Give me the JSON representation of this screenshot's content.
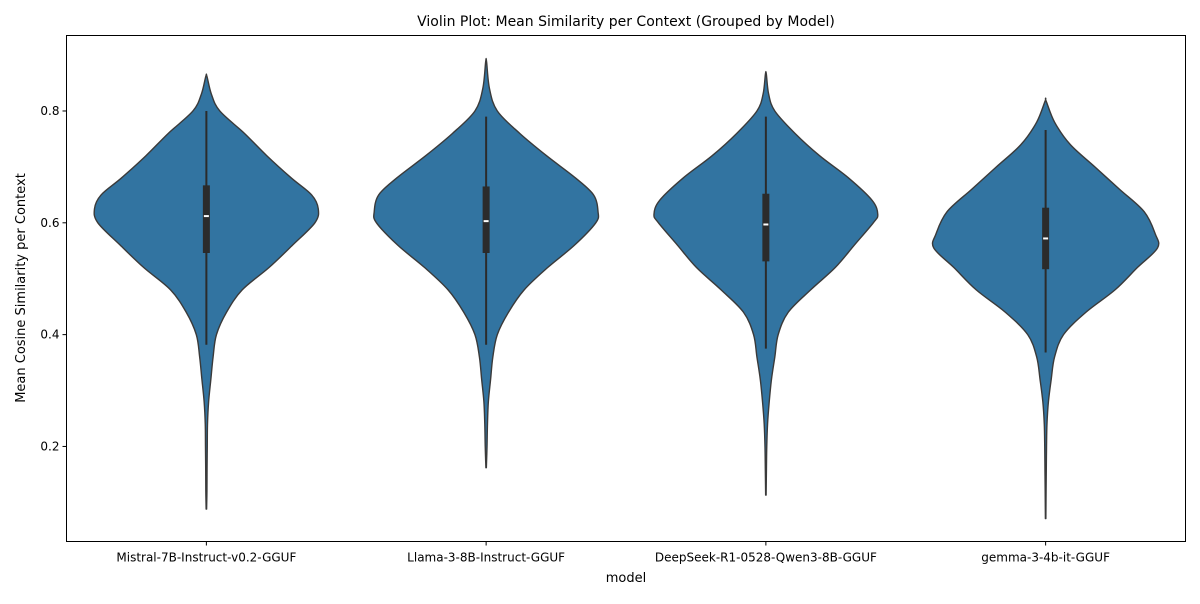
{
  "chart_data": {
    "type": "violin",
    "title": "Violin Plot: Mean Similarity per Context (Grouped by Model)",
    "xlabel": "model",
    "ylabel": "Mean Cosine Similarity per Context",
    "ylim": [
      0.03,
      0.935
    ],
    "yticks": [
      0.2,
      0.4,
      0.6,
      0.8
    ],
    "ytick_labels": [
      "0.2",
      "0.4",
      "0.6",
      "0.8"
    ],
    "grid": false,
    "colors": {
      "fill": "#3274a1",
      "edge": "#3a3a3a",
      "box": "#2b2b2b",
      "median": "#ffffff"
    },
    "categories": [
      "Mistral-7B-Instruct-v0.2-GGUF",
      "Llama-3-8B-Instruct-GGUF",
      "DeepSeek-R1-0528-Qwen3-8B-GGUF",
      "gemma-3-4b-it-GGUF"
    ],
    "violins": [
      {
        "category": "Mistral-7B-Instruct-v0.2-GGUF",
        "min": 0.088,
        "max": 0.862,
        "q1": 0.546,
        "median": 0.612,
        "q3": 0.667,
        "whisker_low": 0.382,
        "whisker_high": 0.8,
        "density": [
          [
            0.088,
            0.002
          ],
          [
            0.12,
            0.005
          ],
          [
            0.16,
            0.006
          ],
          [
            0.2,
            0.008
          ],
          [
            0.24,
            0.01
          ],
          [
            0.28,
            0.02
          ],
          [
            0.32,
            0.04
          ],
          [
            0.36,
            0.06
          ],
          [
            0.4,
            0.09
          ],
          [
            0.44,
            0.18
          ],
          [
            0.48,
            0.32
          ],
          [
            0.52,
            0.56
          ],
          [
            0.56,
            0.77
          ],
          [
            0.6,
            0.97
          ],
          [
            0.625,
            1.0
          ],
          [
            0.65,
            0.94
          ],
          [
            0.68,
            0.76
          ],
          [
            0.72,
            0.54
          ],
          [
            0.76,
            0.34
          ],
          [
            0.8,
            0.12
          ],
          [
            0.83,
            0.045
          ],
          [
            0.862,
            0.005
          ]
        ]
      },
      {
        "category": "Llama-3-8B-Instruct-GGUF",
        "min": 0.162,
        "max": 0.888,
        "q1": 0.546,
        "median": 0.603,
        "q3": 0.665,
        "whisker_low": 0.382,
        "whisker_high": 0.79,
        "density": [
          [
            0.162,
            0.002
          ],
          [
            0.2,
            0.008
          ],
          [
            0.24,
            0.012
          ],
          [
            0.28,
            0.02
          ],
          [
            0.32,
            0.04
          ],
          [
            0.36,
            0.06
          ],
          [
            0.4,
            0.1
          ],
          [
            0.44,
            0.2
          ],
          [
            0.48,
            0.34
          ],
          [
            0.52,
            0.55
          ],
          [
            0.56,
            0.79
          ],
          [
            0.6,
            0.98
          ],
          [
            0.62,
            1.0
          ],
          [
            0.65,
            0.96
          ],
          [
            0.68,
            0.8
          ],
          [
            0.72,
            0.54
          ],
          [
            0.76,
            0.3
          ],
          [
            0.8,
            0.1
          ],
          [
            0.84,
            0.03
          ],
          [
            0.888,
            0.004
          ]
        ]
      },
      {
        "category": "DeepSeek-R1-0528-Qwen3-8B-GGUF",
        "min": 0.113,
        "max": 0.866,
        "q1": 0.531,
        "median": 0.597,
        "q3": 0.652,
        "whisker_low": 0.375,
        "whisker_high": 0.79,
        "density": [
          [
            0.113,
            0.002
          ],
          [
            0.16,
            0.005
          ],
          [
            0.2,
            0.008
          ],
          [
            0.24,
            0.015
          ],
          [
            0.28,
            0.03
          ],
          [
            0.32,
            0.05
          ],
          [
            0.36,
            0.08
          ],
          [
            0.4,
            0.11
          ],
          [
            0.44,
            0.2
          ],
          [
            0.48,
            0.4
          ],
          [
            0.52,
            0.62
          ],
          [
            0.56,
            0.79
          ],
          [
            0.6,
            0.96
          ],
          [
            0.615,
            1.0
          ],
          [
            0.64,
            0.95
          ],
          [
            0.68,
            0.74
          ],
          [
            0.72,
            0.48
          ],
          [
            0.76,
            0.26
          ],
          [
            0.8,
            0.08
          ],
          [
            0.83,
            0.025
          ],
          [
            0.866,
            0.004
          ]
        ]
      },
      {
        "category": "gemma-3-4b-it-GGUF",
        "min": 0.071,
        "max": 0.818,
        "q1": 0.517,
        "median": 0.572,
        "q3": 0.627,
        "whisker_low": 0.368,
        "whisker_high": 0.766,
        "density": [
          [
            0.071,
            0.002
          ],
          [
            0.12,
            0.004
          ],
          [
            0.16,
            0.006
          ],
          [
            0.2,
            0.008
          ],
          [
            0.24,
            0.012
          ],
          [
            0.28,
            0.025
          ],
          [
            0.32,
            0.05
          ],
          [
            0.36,
            0.08
          ],
          [
            0.4,
            0.16
          ],
          [
            0.44,
            0.36
          ],
          [
            0.48,
            0.62
          ],
          [
            0.52,
            0.82
          ],
          [
            0.555,
            1.0
          ],
          [
            0.58,
            0.98
          ],
          [
            0.62,
            0.88
          ],
          [
            0.66,
            0.66
          ],
          [
            0.7,
            0.44
          ],
          [
            0.74,
            0.22
          ],
          [
            0.78,
            0.08
          ],
          [
            0.818,
            0.004
          ]
        ]
      }
    ]
  }
}
